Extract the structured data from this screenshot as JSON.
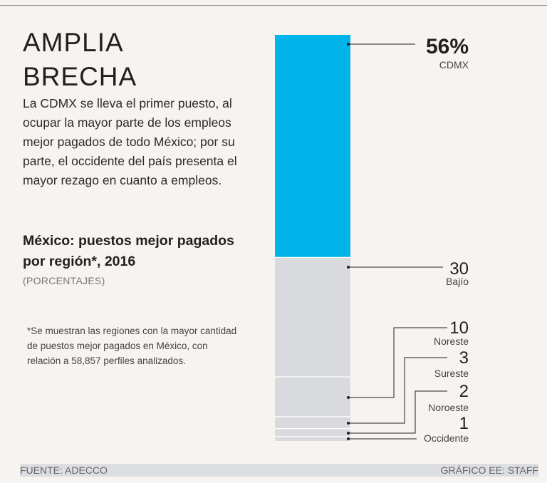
{
  "header": {
    "title_line1": "AMPLIA",
    "title_line2": "BRECHA",
    "intro": "La CDMX se lleva el primer puesto, al ocupar la mayor parte de los empleos mejor pagados de todo México; por su parte, el occidente del país presenta el mayor rezago en cuanto a empleos."
  },
  "chart_data": {
    "type": "bar",
    "layout": "stacked-single-column",
    "title": "México: puestos mejor pagados por región*, 2016",
    "units": "(PORCENTAJES)",
    "categories": [
      "CDMX",
      "Bajío",
      "Noreste",
      "Sureste",
      "Noroeste",
      "Occidente"
    ],
    "values": [
      56,
      30,
      10,
      3,
      2,
      1
    ],
    "value_labels": [
      "56%",
      "30",
      "10",
      "3",
      "2",
      "1"
    ],
    "colors": [
      "#00b4ea",
      "#d9dadd",
      "#d9dadd",
      "#d9dadd",
      "#d9dadd",
      "#d9dadd"
    ],
    "ylim": [
      0,
      102
    ]
  },
  "footnote": "*Se muestran las regiones con la mayor cantidad de puestos mejor pagados en México, con relación a 58,857 perfiles analizados.",
  "footer": {
    "source": "FUENTE: ADECCO",
    "credit": "GRÁFICO EE: STAFF"
  }
}
